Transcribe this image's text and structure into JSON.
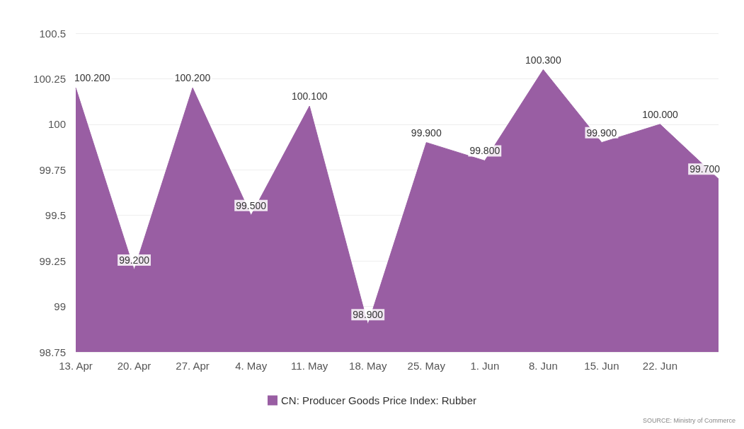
{
  "chart_data": {
    "type": "area",
    "categories": [
      "13. Apr",
      "20. Apr",
      "27. Apr",
      "4. May",
      "11. May",
      "18. May",
      "25. May",
      "1. Jun",
      "8. Jun",
      "15. Jun",
      "22. Jun",
      null
    ],
    "series": [
      {
        "name": "CN: Producer Goods Price Index: Rubber",
        "color": "#995ea3",
        "values": [
          100.2,
          99.2,
          100.2,
          99.5,
          100.1,
          98.9,
          99.9,
          99.8,
          100.3,
          99.9,
          100.0,
          99.7
        ],
        "value_labels": [
          "100.200",
          "99.200",
          "100.200",
          "99.500",
          "100.100",
          "98.900",
          "99.900",
          "99.800",
          "100.300",
          "99.900",
          "100.000",
          "99.700"
        ]
      }
    ],
    "ylim": [
      98.75,
      100.5
    ],
    "yticks": [
      98.75,
      99,
      99.25,
      99.5,
      99.75,
      100,
      100.25,
      100.5
    ],
    "grid": "y",
    "legend": "bottom",
    "marker": "none",
    "annotations": [
      "SOURCE: Ministry of Commerce"
    ]
  }
}
